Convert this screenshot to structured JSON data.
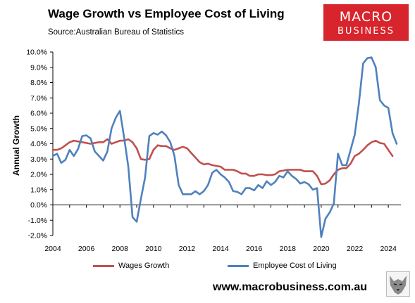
{
  "header": {
    "title": "Wage Growth vs Employee Cost of Living",
    "source": "Source:Australian Bureau of Statistics"
  },
  "logo": {
    "line1": "MACRO",
    "line2": "BUSINESS",
    "color": "#d8242c"
  },
  "footer": {
    "site": "www.macrobusiness.com.au",
    "emblem": "wolf-emblem"
  },
  "chart_data": {
    "type": "line",
    "title": "Wage Growth vs Employee Cost of Living",
    "ylabel": "Annual Growth",
    "xlabel": "",
    "ylim": [
      -2,
      10
    ],
    "xlim": [
      2004,
      2024.75
    ],
    "yticks": [
      "-2.0%",
      "-1.0%",
      "0.0%",
      "1.0%",
      "2.0%",
      "3.0%",
      "4.0%",
      "5.0%",
      "6.0%",
      "7.0%",
      "8.0%",
      "9.0%",
      "10.0%"
    ],
    "xticks": [
      "2004",
      "2006",
      "2008",
      "2010",
      "2012",
      "2014",
      "2016",
      "2018",
      "2020",
      "2022",
      "2024"
    ],
    "grid": false,
    "legend": "bottom",
    "x_start": "2004 Q1",
    "x_step": "quarterly",
    "series": [
      {
        "name": "Wages Growth",
        "color": "#c0504d",
        "values": [
          3.6,
          3.6,
          3.7,
          3.9,
          4.1,
          4.2,
          4.15,
          4.1,
          4.05,
          4.0,
          4.05,
          4.1,
          4.1,
          4.3,
          4.0,
          4.1,
          4.2,
          4.2,
          4.3,
          4.1,
          3.7,
          3.0,
          2.95,
          3.0,
          3.6,
          3.9,
          3.85,
          3.85,
          3.7,
          3.6,
          3.7,
          3.8,
          3.7,
          3.4,
          3.1,
          2.8,
          2.65,
          2.7,
          2.6,
          2.55,
          2.5,
          2.3,
          2.3,
          2.3,
          2.2,
          2.05,
          2.05,
          1.9,
          1.9,
          2.0,
          2.0,
          1.95,
          1.95,
          2.0,
          2.2,
          2.25,
          2.3,
          2.3,
          2.3,
          2.3,
          2.2,
          2.2,
          2.2,
          1.9,
          1.35,
          1.4,
          1.6,
          2.0,
          2.3,
          2.4,
          2.4,
          2.7,
          3.2,
          3.35,
          3.6,
          3.9,
          4.1,
          4.2,
          4.05,
          4.0,
          3.6,
          3.2
        ]
      },
      {
        "name": "Employee Cost of Living",
        "color": "#4f81bd",
        "values": [
          3.2,
          3.35,
          2.75,
          2.95,
          3.6,
          3.2,
          3.65,
          4.5,
          4.55,
          4.35,
          3.5,
          3.2,
          2.9,
          3.5,
          5.0,
          5.7,
          6.15,
          4.4,
          2.5,
          -0.8,
          -1.1,
          0.4,
          1.8,
          4.5,
          4.7,
          4.6,
          4.8,
          4.55,
          4.1,
          3.2,
          1.3,
          0.7,
          0.7,
          0.7,
          0.9,
          0.7,
          0.9,
          1.3,
          2.1,
          2.3,
          2.0,
          1.8,
          1.5,
          0.9,
          0.85,
          0.7,
          1.1,
          1.1,
          0.95,
          1.3,
          1.1,
          1.55,
          1.3,
          1.5,
          1.9,
          1.8,
          2.2,
          1.9,
          1.7,
          1.4,
          1.5,
          1.35,
          1.0,
          1.1,
          -2.1,
          -0.9,
          -0.5,
          0.1,
          3.35,
          2.6,
          2.6,
          3.6,
          4.6,
          6.7,
          9.25,
          9.6,
          9.65,
          9.0,
          6.85,
          6.5,
          6.35,
          4.7,
          4.0
        ]
      }
    ]
  }
}
